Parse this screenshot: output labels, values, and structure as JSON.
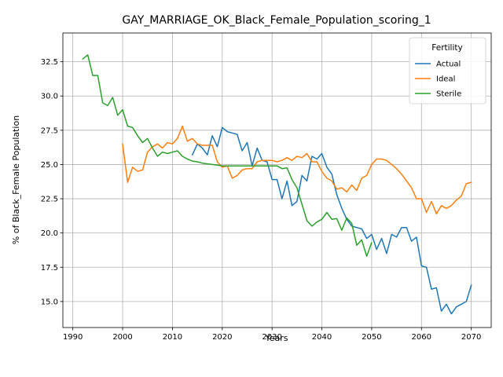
{
  "chart_data": {
    "type": "line",
    "title": "GAY_MARRIAGE_OK_Black_Female_Population_scoring_1",
    "xlabel": "Years",
    "ylabel": "% of Black_Female Population",
    "xlim": [
      1988,
      2074
    ],
    "ylim": [
      13.1,
      34.6
    ],
    "xticks": [
      1990,
      2000,
      2010,
      2020,
      2030,
      2040,
      2050,
      2060,
      2070
    ],
    "xtick_labels": [
      "1990",
      "2000",
      "2010",
      "2020",
      "2030",
      "2040",
      "2050",
      "2060",
      "2070"
    ],
    "yticks": [
      15.0,
      17.5,
      20.0,
      22.5,
      25.0,
      27.5,
      30.0,
      32.5
    ],
    "ytick_labels": [
      "15.0",
      "17.5",
      "20.0",
      "22.5",
      "25.0",
      "27.5",
      "30.0",
      "32.5"
    ],
    "grid": true,
    "legend": {
      "title": "Fertility",
      "position": "top-right"
    },
    "series": [
      {
        "name": "Actual",
        "color": "#1f77b4",
        "x": [
          2014,
          2015,
          2016,
          2017,
          2018,
          2019,
          2020,
          2021,
          2022,
          2023,
          2024,
          2025,
          2026,
          2027,
          2028,
          2029,
          2030,
          2031,
          2032,
          2033,
          2034,
          2035,
          2036,
          2037,
          2038,
          2039,
          2040,
          2041,
          2042,
          2043,
          2044,
          2045,
          2046,
          2047,
          2048,
          2049,
          2050,
          2051,
          2052,
          2053,
          2054,
          2055,
          2056,
          2057,
          2058,
          2059,
          2060,
          2061,
          2062,
          2063,
          2064,
          2065,
          2066,
          2067,
          2068,
          2069,
          2070
        ],
        "y": [
          25.7,
          26.5,
          26.2,
          25.7,
          27.1,
          26.3,
          27.7,
          27.4,
          27.3,
          27.2,
          26.0,
          26.6,
          24.9,
          26.2,
          25.3,
          25.2,
          23.9,
          23.9,
          22.5,
          23.8,
          22.0,
          22.3,
          24.2,
          23.8,
          25.6,
          25.4,
          25.8,
          24.8,
          24.3,
          22.8,
          21.8,
          21.0,
          20.5,
          20.4,
          20.3,
          19.6,
          19.9,
          18.8,
          19.6,
          18.5,
          19.9,
          19.7,
          20.4,
          20.4,
          19.4,
          19.7,
          17.6,
          17.5,
          15.9,
          16.0,
          14.3,
          14.8,
          14.1,
          14.6,
          14.8,
          15.0,
          16.2
        ]
      },
      {
        "name": "Ideal",
        "color": "#ff7f0e",
        "x": [
          2000,
          2001,
          2002,
          2003,
          2004,
          2005,
          2006,
          2007,
          2008,
          2009,
          2010,
          2011,
          2012,
          2013,
          2014,
          2015,
          2016,
          2017,
          2018,
          2019,
          2020,
          2021,
          2022,
          2023,
          2024,
          2025,
          2026,
          2027,
          2028,
          2029,
          2030,
          2031,
          2032,
          2033,
          2034,
          2035,
          2036,
          2037,
          2038,
          2039,
          2040,
          2041,
          2042,
          2043,
          2044,
          2045,
          2046,
          2047,
          2048,
          2049,
          2050,
          2051,
          2052,
          2053,
          2054,
          2055,
          2056,
          2057,
          2058,
          2059,
          2060,
          2061,
          2062,
          2063,
          2064,
          2065,
          2066,
          2067,
          2068,
          2069,
          2070
        ],
        "y": [
          26.5,
          23.7,
          24.8,
          24.5,
          24.6,
          25.9,
          26.3,
          26.5,
          26.2,
          26.6,
          26.5,
          26.9,
          27.8,
          26.7,
          26.9,
          26.5,
          26.4,
          26.4,
          26.4,
          25.2,
          24.8,
          24.9,
          24.0,
          24.2,
          24.6,
          24.7,
          24.7,
          25.2,
          25.3,
          25.3,
          25.3,
          25.2,
          25.3,
          25.5,
          25.3,
          25.6,
          25.5,
          25.8,
          25.2,
          25.2,
          24.5,
          24.0,
          23.8,
          23.2,
          23.3,
          23.0,
          23.5,
          23.1,
          24.0,
          24.2,
          25.0,
          25.4,
          25.4,
          25.3,
          25.0,
          24.7,
          24.3,
          23.8,
          23.3,
          22.5,
          22.5,
          21.5,
          22.3,
          21.4,
          22.0,
          21.8,
          22.0,
          22.4,
          22.7,
          23.6,
          23.7
        ]
      },
      {
        "name": "Sterile",
        "color": "#2ca02c",
        "x": [
          1992,
          1993,
          1994,
          1995,
          1996,
          1997,
          1998,
          1999,
          2000,
          2001,
          2002,
          2003,
          2004,
          2005,
          2006,
          2007,
          2008,
          2009,
          2010,
          2011,
          2012,
          2013,
          2014,
          2015,
          2016,
          2017,
          2018,
          2019,
          2020,
          2021,
          2022,
          2023,
          2024,
          2025,
          2026,
          2027,
          2028,
          2029,
          2030,
          2031,
          2032,
          2033,
          2034,
          2035,
          2036,
          2037,
          2038,
          2039,
          2040,
          2041,
          2042,
          2043,
          2044,
          2045,
          2046,
          2047,
          2048,
          2049,
          2050
        ],
        "y": [
          32.7,
          33.0,
          31.5,
          31.5,
          29.5,
          29.3,
          29.9,
          28.6,
          29.0,
          27.8,
          27.7,
          27.1,
          26.6,
          26.9,
          26.2,
          25.6,
          25.9,
          25.8,
          25.9,
          26.0,
          25.6,
          25.4,
          25.25,
          25.2,
          25.1,
          25.05,
          25.0,
          24.95,
          24.9,
          24.9,
          24.9,
          24.9,
          24.9,
          24.9,
          24.9,
          24.9,
          24.9,
          24.9,
          24.9,
          24.9,
          24.7,
          24.75,
          23.9,
          23.3,
          22.1,
          20.9,
          20.5,
          20.8,
          21.0,
          21.5,
          21.0,
          21.05,
          20.2,
          21.1,
          20.7,
          19.1,
          19.5,
          18.3,
          19.3
        ]
      }
    ]
  }
}
